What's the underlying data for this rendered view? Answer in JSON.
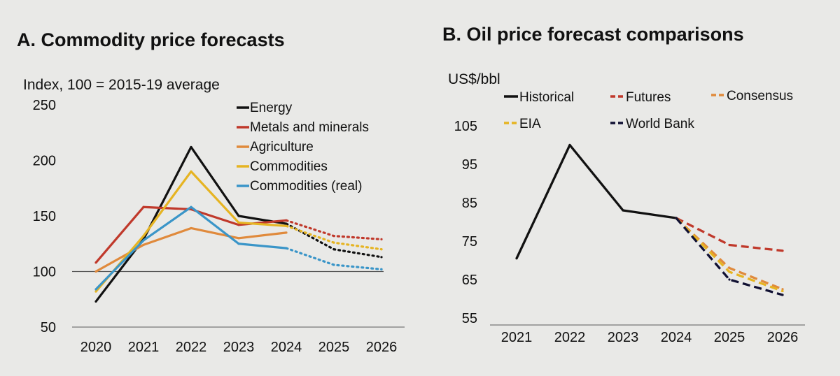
{
  "chart_data": [
    {
      "type": "line",
      "title": "A. Commodity price forecasts",
      "ylabel": "Index, 100 = 2015-19 average",
      "x": [
        "2020",
        "2021",
        "2022",
        "2023",
        "2024",
        "2025",
        "2026"
      ],
      "yticks": [
        "250",
        "200",
        "150",
        "100",
        "50"
      ],
      "ylim": [
        50,
        250
      ],
      "reference_line": 100,
      "forecast_from": "2024",
      "legend_position": "top-right",
      "series": [
        {
          "name": "Energy",
          "color": "#111111",
          "values": [
            73,
            129,
            212,
            150,
            143,
            120,
            113
          ]
        },
        {
          "name": "Metals and minerals",
          "color": "#c0392b",
          "values": [
            108,
            158,
            156,
            142,
            146,
            132,
            129
          ]
        },
        {
          "name": "Agriculture",
          "color": "#e08a3c",
          "values": [
            100,
            124,
            139,
            130,
            135,
            null,
            null
          ]
        },
        {
          "name": "Commodities",
          "color": "#e6b422",
          "values": [
            82,
            132,
            190,
            144,
            141,
            126,
            120
          ]
        },
        {
          "name": "Commodities (real)",
          "color": "#3a95c8",
          "values": [
            84,
            128,
            158,
            125,
            121,
            106,
            102
          ]
        }
      ]
    },
    {
      "type": "line",
      "title": "B. Oil price forecast comparisons",
      "ylabel": "US$/bbl",
      "x": [
        "2021",
        "2022",
        "2023",
        "2024",
        "2025",
        "2026"
      ],
      "yticks": [
        "105",
        "95",
        "85",
        "75",
        "65",
        "55"
      ],
      "ylim": [
        55,
        105
      ],
      "legend_position": "top",
      "series": [
        {
          "name": "Historical",
          "color": "#111111",
          "style": "solid",
          "values": [
            70.5,
            100,
            83,
            81,
            null,
            null
          ]
        },
        {
          "name": "Futures",
          "color": "#c0392b",
          "style": "dashed",
          "values": [
            null,
            null,
            null,
            81,
            74,
            72.5
          ]
        },
        {
          "name": "Consensus",
          "color": "#e08a3c",
          "style": "dashed",
          "values": [
            null,
            null,
            null,
            81,
            68,
            62.5
          ]
        },
        {
          "name": "EIA",
          "color": "#e6b422",
          "style": "dashed",
          "values": [
            null,
            null,
            null,
            81,
            67,
            62
          ]
        },
        {
          "name": "World Bank",
          "color": "#111133",
          "style": "dashed",
          "values": [
            null,
            null,
            null,
            81,
            65,
            61
          ]
        }
      ]
    }
  ]
}
